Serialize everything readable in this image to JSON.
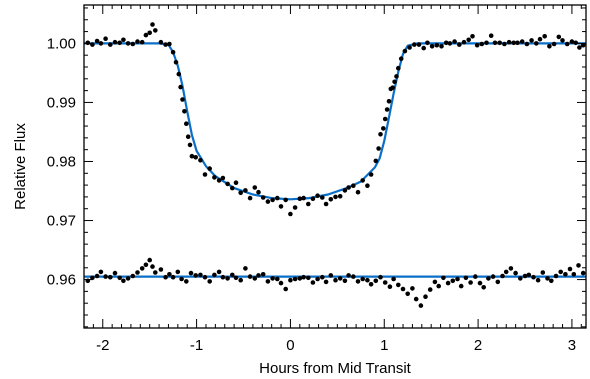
{
  "chart_data": {
    "type": "scatter",
    "title": "",
    "xlabel": "Hours from Mid Transit",
    "ylabel": "Relative Flux",
    "xlim": [
      -2.2,
      3.15
    ],
    "ylim": [
      0.9518,
      1.0065
    ],
    "x_ticks": [
      -2,
      -1,
      0,
      1,
      2,
      3
    ],
    "x_tick_labels": [
      "-2",
      "-1",
      "0",
      "1",
      "2",
      "3"
    ],
    "y_ticks": [
      1.0,
      0.99,
      0.98,
      0.97,
      0.96
    ],
    "y_tick_labels": [
      "1.00",
      "0.99",
      "0.98",
      "0.97",
      "0.96"
    ],
    "grid": false,
    "colors": {
      "points": "#000000",
      "model": "#0a6fc8"
    },
    "series": [
      {
        "kind": "points",
        "x": [
          -2.16,
          -2.11,
          -2.06,
          -2.02,
          -1.97,
          -1.92,
          -1.87,
          -1.82,
          -1.78,
          -1.73,
          -1.68,
          -1.63,
          -1.58,
          -1.54,
          -1.5,
          -1.47,
          -1.44,
          -1.38,
          -1.33,
          -1.29,
          -1.25,
          -1.22,
          -1.19,
          -1.17,
          -1.15,
          -1.13,
          -1.11,
          -1.09,
          -1.07,
          -1.05,
          -1.01,
          -0.96,
          -0.91,
          -0.86,
          -0.81,
          -0.76,
          -0.72,
          -0.67,
          -0.62,
          -0.58,
          -0.53,
          -0.48,
          -0.43,
          -0.38,
          -0.34,
          -0.29,
          -0.24,
          -0.19,
          -0.14,
          -0.1,
          -0.05,
          0.0,
          0.05,
          0.1,
          0.14,
          0.19,
          0.24,
          0.29,
          0.34,
          0.38,
          0.43,
          0.48,
          0.53,
          0.58,
          0.62,
          0.67,
          0.72,
          0.77,
          0.82,
          0.86,
          0.91,
          0.94,
          0.96,
          0.99,
          1.01,
          1.03,
          1.05,
          1.07,
          1.09,
          1.11,
          1.13,
          1.15,
          1.18,
          1.22,
          1.27,
          1.32,
          1.37,
          1.42,
          1.46,
          1.51,
          1.56,
          1.61,
          1.66,
          1.7,
          1.75,
          1.8,
          1.85,
          1.9,
          1.94,
          1.99,
          2.04,
          2.09,
          2.14,
          2.18,
          2.23,
          2.28,
          2.33,
          2.38,
          2.42,
          2.47,
          2.52,
          2.57,
          2.62,
          2.66,
          2.71,
          2.76,
          2.81,
          2.86,
          2.9,
          2.95,
          3.0,
          3.04,
          3.08,
          3.12
        ],
        "y": [
          1.0001,
          0.9998,
          1.0004,
          1.0,
          1.0008,
          0.9998,
          1.0002,
          1.0001,
          1.0006,
          1.0,
          0.9999,
          1.0003,
          1.0002,
          1.0014,
          1.0018,
          1.0032,
          1.0022,
          1.0002,
          0.9998,
          0.9999,
          0.9985,
          0.9968,
          0.9948,
          0.9926,
          0.9905,
          0.9885,
          0.9864,
          0.9842,
          0.9828,
          0.9809,
          0.9807,
          0.9802,
          0.9778,
          0.9788,
          0.9773,
          0.9768,
          0.9772,
          0.9762,
          0.9755,
          0.9764,
          0.9747,
          0.9751,
          0.9738,
          0.9756,
          0.9748,
          0.9739,
          0.9732,
          0.9735,
          0.9738,
          0.9724,
          0.9735,
          0.9711,
          0.9722,
          0.9737,
          0.9738,
          0.9728,
          0.9737,
          0.9742,
          0.9739,
          0.9728,
          0.9736,
          0.974,
          0.9741,
          0.9751,
          0.9756,
          0.9759,
          0.9748,
          0.9768,
          0.9759,
          0.9778,
          0.9801,
          0.9822,
          0.9846,
          0.9856,
          0.9872,
          0.9888,
          0.9902,
          0.9923,
          0.9925,
          0.9935,
          0.9944,
          0.9958,
          0.9974,
          0.9987,
          0.9993,
          0.9998,
          0.9998,
          0.9992,
          1.0001,
          0.9995,
          0.9997,
          0.9995,
          1.0001,
          1.0,
          1.0003,
          0.9998,
          1.0002,
          1.0006,
          1.0012,
          0.9997,
          0.9999,
          1.0001,
          1.0013,
          1.0001,
          1.0001,
          0.9999,
          1.0002,
          1.0001,
          1.0001,
          1.0003,
          0.9999,
          1.0005,
          1.0,
          1.0007,
          1.0012,
          0.9995,
          0.9999,
          1.0011,
          1.0005,
          0.9999,
          1.0003,
          1.0001,
          0.9993,
          0.9997
        ]
      },
      {
        "kind": "points",
        "x": [
          -2.16,
          -2.11,
          -2.06,
          -2.02,
          -1.97,
          -1.92,
          -1.87,
          -1.82,
          -1.78,
          -1.73,
          -1.68,
          -1.63,
          -1.58,
          -1.54,
          -1.5,
          -1.47,
          -1.44,
          -1.38,
          -1.33,
          -1.29,
          -1.25,
          -1.2,
          -1.16,
          -1.11,
          -1.06,
          -1.01,
          -0.96,
          -0.91,
          -0.86,
          -0.81,
          -0.76,
          -0.72,
          -0.67,
          -0.62,
          -0.58,
          -0.53,
          -0.48,
          -0.43,
          -0.38,
          -0.34,
          -0.29,
          -0.24,
          -0.19,
          -0.14,
          -0.1,
          -0.05,
          0.0,
          0.05,
          0.1,
          0.14,
          0.19,
          0.24,
          0.29,
          0.34,
          0.38,
          0.43,
          0.48,
          0.53,
          0.58,
          0.62,
          0.67,
          0.72,
          0.77,
          0.82,
          0.86,
          0.91,
          0.96,
          1.01,
          1.06,
          1.1,
          1.15,
          1.2,
          1.25,
          1.3,
          1.34,
          1.39,
          1.44,
          1.49,
          1.54,
          1.58,
          1.63,
          1.68,
          1.73,
          1.78,
          1.82,
          1.87,
          1.92,
          1.97,
          2.02,
          2.06,
          2.11,
          2.16,
          2.21,
          2.26,
          2.3,
          2.35,
          2.4,
          2.45,
          2.5,
          2.54,
          2.59,
          2.64,
          2.69,
          2.74,
          2.78,
          2.83,
          2.88,
          2.93,
          2.98,
          3.02,
          3.07,
          3.12
        ],
        "y": [
          0.9598,
          0.9603,
          0.9606,
          0.9613,
          0.9605,
          0.9604,
          0.9611,
          0.9603,
          0.9598,
          0.9602,
          0.9606,
          0.9612,
          0.9619,
          0.9625,
          0.9633,
          0.9622,
          0.9612,
          0.9617,
          0.9604,
          0.9609,
          0.9604,
          0.9613,
          0.9601,
          0.9597,
          0.9611,
          0.9607,
          0.9608,
          0.9604,
          0.9597,
          0.9608,
          0.9613,
          0.9604,
          0.9602,
          0.9608,
          0.9603,
          0.9599,
          0.9619,
          0.9605,
          0.9602,
          0.9607,
          0.9609,
          0.9597,
          0.9602,
          0.9601,
          0.9594,
          0.9584,
          0.9599,
          0.9601,
          0.9602,
          0.9604,
          0.9603,
          0.9595,
          0.9601,
          0.9604,
          0.9596,
          0.9607,
          0.9599,
          0.9602,
          0.9598,
          0.9607,
          0.9605,
          0.9597,
          0.9601,
          0.9599,
          0.9592,
          0.9598,
          0.9604,
          0.9595,
          0.9588,
          0.9601,
          0.9591,
          0.9584,
          0.9576,
          0.9585,
          0.9567,
          0.9556,
          0.9571,
          0.9583,
          0.9596,
          0.9589,
          0.9603,
          0.9594,
          0.9598,
          0.9601,
          0.9589,
          0.9603,
          0.9595,
          0.9605,
          0.9594,
          0.9587,
          0.9602,
          0.9605,
          0.9596,
          0.9606,
          0.9613,
          0.9619,
          0.9611,
          0.9602,
          0.9606,
          0.9608,
          0.9604,
          0.9599,
          0.9612,
          0.9602,
          0.9598,
          0.9606,
          0.9613,
          0.9609,
          0.9618,
          0.9609,
          0.9624,
          0.9611
        ]
      },
      {
        "kind": "line",
        "x": [
          -2.2,
          -1.6,
          -1.4,
          -1.3,
          -1.25,
          -1.2,
          -1.15,
          -1.1,
          -1.05,
          -1.0,
          -0.9,
          -0.8,
          -0.6,
          -0.4,
          -0.2,
          0.0,
          0.2,
          0.4,
          0.6,
          0.75,
          0.9,
          0.95,
          1.0,
          1.05,
          1.1,
          1.15,
          1.2,
          1.25,
          1.35,
          1.55,
          3.15
        ],
        "y": [
          1.0,
          1.0,
          1.0,
          0.9998,
          0.9985,
          0.9962,
          0.9928,
          0.9885,
          0.9845,
          0.9818,
          0.9792,
          0.9775,
          0.9755,
          0.9744,
          0.9738,
          0.9736,
          0.9738,
          0.9744,
          0.9755,
          0.9766,
          0.979,
          0.9805,
          0.9835,
          0.9875,
          0.9915,
          0.9952,
          0.9982,
          0.9996,
          1.0,
          1.0,
          1.0
        ]
      },
      {
        "kind": "line",
        "x": [
          -2.2,
          3.15
        ],
        "y": [
          0.9605,
          0.9605
        ]
      }
    ]
  }
}
